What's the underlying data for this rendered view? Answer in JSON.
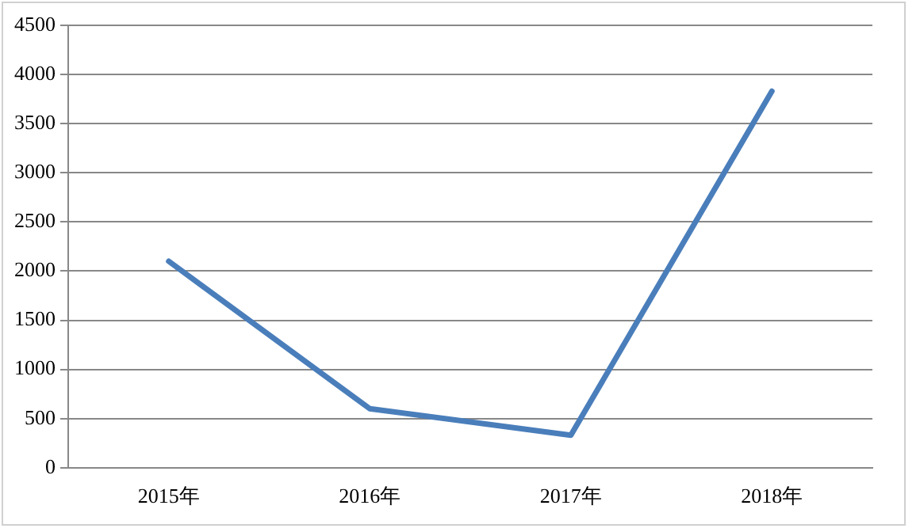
{
  "chart_data": {
    "type": "line",
    "categories": [
      "2015年",
      "2016年",
      "2017年",
      "2018年"
    ],
    "series": [
      {
        "color": "#4a7ebb",
        "values": [
          2100,
          600,
          330,
          3830
        ]
      }
    ],
    "ylim": [
      0,
      4500
    ],
    "yticks": [
      0,
      500,
      1000,
      1500,
      2000,
      2500,
      3000,
      3500,
      4000,
      4500
    ],
    "grid": "y",
    "legend": false,
    "marker": "none",
    "line_style": "solid"
  }
}
